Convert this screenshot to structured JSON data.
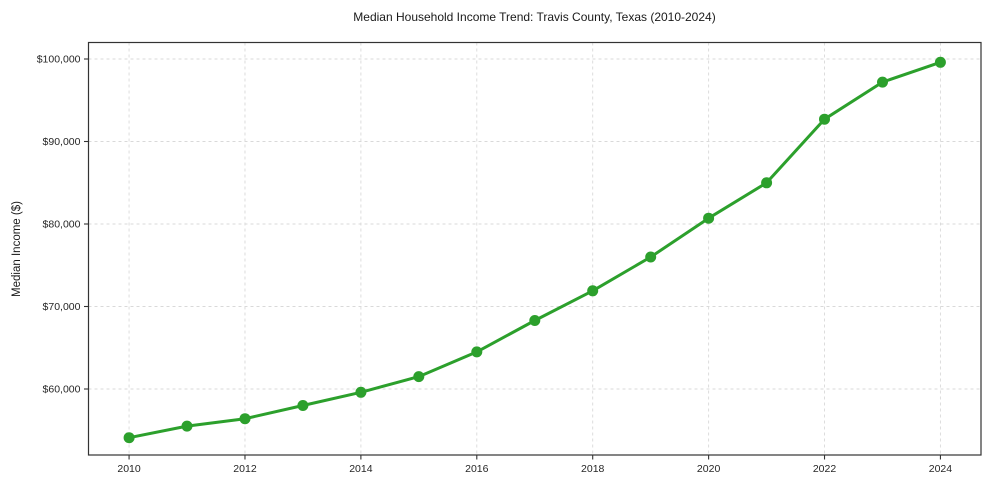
{
  "chart_data": {
    "type": "line",
    "title": "Median Household Income Trend: Travis County, Texas (2010-2024)",
    "xlabel": "",
    "ylabel": "Median Income ($)",
    "x": [
      2010,
      2011,
      2012,
      2013,
      2014,
      2015,
      2016,
      2017,
      2018,
      2019,
      2020,
      2021,
      2022,
      2023,
      2024
    ],
    "series": [
      {
        "name": "Median household income",
        "values": [
          54100,
          55500,
          56400,
          58000,
          59600,
          61500,
          64500,
          68300,
          71900,
          76000,
          80700,
          85000,
          92700,
          97200,
          99600
        ],
        "color": "#2ca02c"
      }
    ],
    "x_ticks": [
      2010,
      2012,
      2014,
      2016,
      2018,
      2020,
      2022,
      2024
    ],
    "x_tick_labels": [
      "2010",
      "2012",
      "2014",
      "2016",
      "2018",
      "2020",
      "2022",
      "2024"
    ],
    "y_ticks": [
      60000,
      70000,
      80000,
      90000,
      100000
    ],
    "y_tick_labels": [
      "$60,000",
      "$70,000",
      "$80,000",
      "$90,000",
      "$100,000"
    ],
    "xlim": [
      2009.3,
      2024.7
    ],
    "ylim": [
      52000,
      102000
    ],
    "grid": true,
    "grid_style": "dashed",
    "legend": "none",
    "marker": "circle",
    "background_color": "#ffffff",
    "grid_color": "#d9d9d9",
    "axis_color": "#333333",
    "text_color": "#262626"
  }
}
